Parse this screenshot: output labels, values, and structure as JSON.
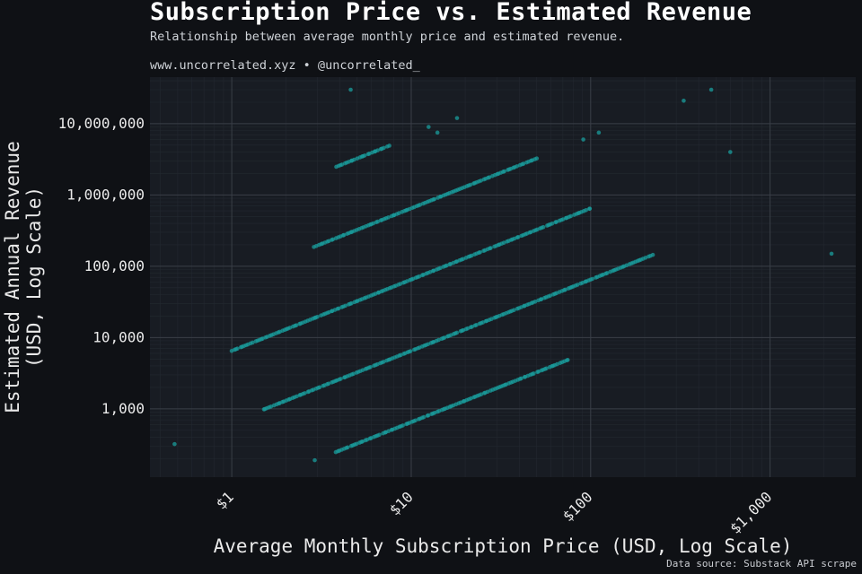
{
  "header": {
    "title": "Subscription Price vs. Estimated Revenue",
    "subtitle": "Relationship between average monthly price and estimated revenue.",
    "byline": "www.uncorrelated.xyz • @uncorrelated_",
    "source": "Data source: Substack API scrape"
  },
  "colors": {
    "background": "#0f1115",
    "plot_background": "#181c23",
    "grid": "#3a3f47",
    "points": "#1a9c9c"
  },
  "chart_data": {
    "type": "scatter",
    "title": "Subscription Price vs. Estimated Revenue",
    "xlabel": "Average Monthly Subscription Price (USD, Log Scale)",
    "ylabel_lines": [
      "Estimated Annual Revenue",
      "(USD, Log Scale)"
    ],
    "x_scale": "log",
    "y_scale": "log",
    "xlim": [
      0.35,
      3000
    ],
    "ylim": [
      110,
      45000000
    ],
    "x_ticks": [
      1,
      10,
      100,
      1000
    ],
    "x_tick_labels": [
      "$1",
      "$10",
      "$100",
      "$1,000"
    ],
    "y_ticks": [
      1000,
      10000,
      100000,
      1000000,
      10000000
    ],
    "y_tick_labels": [
      "1,000",
      "10,000",
      "100,000",
      "1,000,000",
      "10,000,000"
    ],
    "grid": true,
    "series_bands": [
      {
        "revenue_per_price": 65,
        "x_range": [
          3.8,
          75
        ]
      },
      {
        "revenue_per_price": 650,
        "x_range": [
          1.5,
          220
        ]
      },
      {
        "revenue_per_price": 6500,
        "x_range": [
          1.0,
          100
        ]
      },
      {
        "revenue_per_price": 65000,
        "x_range": [
          2.9,
          50
        ]
      },
      {
        "revenue_per_price": 650000,
        "x_range": [
          3.8,
          7.5
        ]
      }
    ],
    "outliers": [
      [
        0.48,
        320
      ],
      [
        4.6,
        30000000
      ],
      [
        18,
        12000000
      ],
      [
        12.5,
        9000000
      ],
      [
        14,
        7500000
      ],
      [
        91,
        6000000
      ],
      [
        111,
        7500000
      ],
      [
        330,
        21000000
      ],
      [
        470,
        30000000
      ],
      [
        600,
        4000000
      ],
      [
        2200,
        150000
      ],
      [
        2.9,
        190
      ]
    ]
  }
}
